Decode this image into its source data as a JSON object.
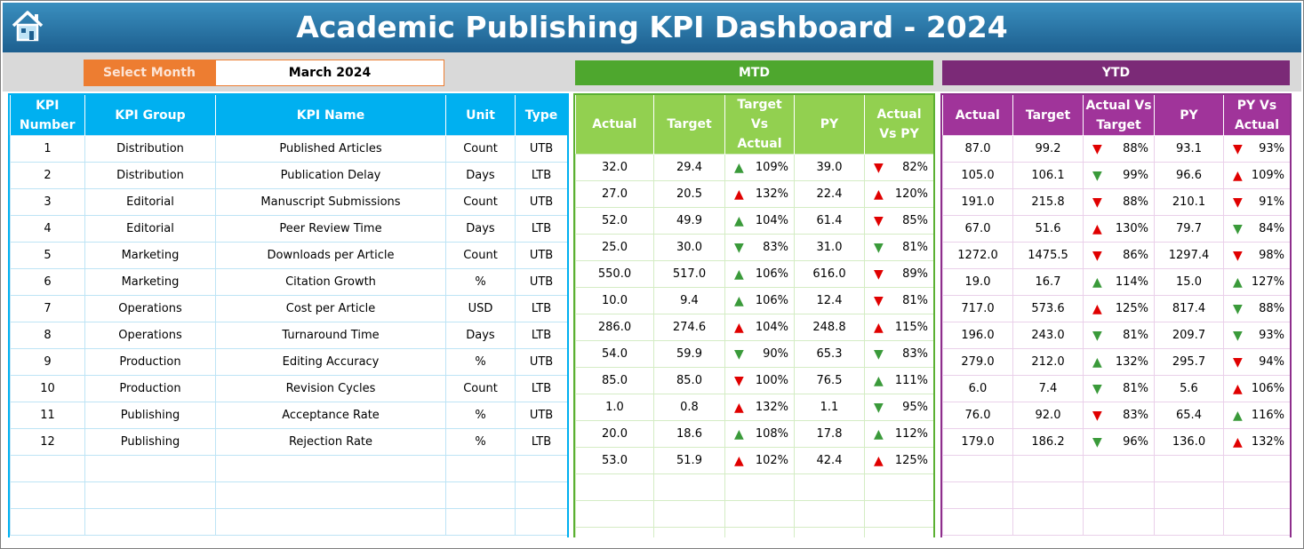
{
  "header": {
    "title": "Academic Publishing KPI Dashboard - 2024"
  },
  "month_selector": {
    "label": "Select Month",
    "value": "March 2024"
  },
  "sections": {
    "mtd": "MTD",
    "ytd": "YTD"
  },
  "kpi_table": {
    "columns": [
      "KPI Number",
      "KPI Group",
      "KPI Name",
      "Unit",
      "Type"
    ],
    "rows": [
      [
        1,
        "Distribution",
        "Published Articles",
        "Count",
        "UTB"
      ],
      [
        2,
        "Distribution",
        "Publication Delay",
        "Days",
        "LTB"
      ],
      [
        3,
        "Editorial",
        "Manuscript Submissions",
        "Count",
        "UTB"
      ],
      [
        4,
        "Editorial",
        "Peer Review Time",
        "Days",
        "LTB"
      ],
      [
        5,
        "Marketing",
        "Downloads per Article",
        "Count",
        "UTB"
      ],
      [
        6,
        "Marketing",
        "Citation Growth",
        "%",
        "UTB"
      ],
      [
        7,
        "Operations",
        "Cost per Article",
        "USD",
        "LTB"
      ],
      [
        8,
        "Operations",
        "Turnaround Time",
        "Days",
        "LTB"
      ],
      [
        9,
        "Production",
        "Editing Accuracy",
        "%",
        "UTB"
      ],
      [
        10,
        "Production",
        "Revision Cycles",
        "Count",
        "LTB"
      ],
      [
        11,
        "Publishing",
        "Acceptance Rate",
        "%",
        "UTB"
      ],
      [
        12,
        "Publishing",
        "Rejection Rate",
        "%",
        "LTB"
      ]
    ]
  },
  "mtd_table": {
    "columns": [
      "Actual",
      "Target",
      "Target Vs Actual",
      "PY",
      "Actual Vs PY"
    ],
    "rows": [
      [
        "32.0",
        "29.4",
        {
          "icon": "up-green",
          "text": "109%"
        },
        "39.0",
        {
          "icon": "down-red",
          "text": "82%"
        }
      ],
      [
        "27.0",
        "20.5",
        {
          "icon": "up-red",
          "text": "132%"
        },
        "22.4",
        {
          "icon": "up-red",
          "text": "120%"
        }
      ],
      [
        "52.0",
        "49.9",
        {
          "icon": "up-green",
          "text": "104%"
        },
        "61.4",
        {
          "icon": "down-red",
          "text": "85%"
        }
      ],
      [
        "25.0",
        "30.0",
        {
          "icon": "down-green",
          "text": "83%"
        },
        "31.0",
        {
          "icon": "down-green",
          "text": "81%"
        }
      ],
      [
        "550.0",
        "517.0",
        {
          "icon": "up-green",
          "text": "106%"
        },
        "616.0",
        {
          "icon": "down-red",
          "text": "89%"
        }
      ],
      [
        "10.0",
        "9.4",
        {
          "icon": "up-green",
          "text": "106%"
        },
        "12.4",
        {
          "icon": "down-red",
          "text": "81%"
        }
      ],
      [
        "286.0",
        "274.6",
        {
          "icon": "up-red",
          "text": "104%"
        },
        "248.8",
        {
          "icon": "up-red",
          "text": "115%"
        }
      ],
      [
        "54.0",
        "59.9",
        {
          "icon": "down-green",
          "text": "90%"
        },
        "65.3",
        {
          "icon": "down-green",
          "text": "83%"
        }
      ],
      [
        "85.0",
        "85.0",
        {
          "icon": "down-red",
          "text": "100%"
        },
        "76.5",
        {
          "icon": "up-green",
          "text": "111%"
        }
      ],
      [
        "1.0",
        "0.8",
        {
          "icon": "up-red",
          "text": "132%"
        },
        "1.1",
        {
          "icon": "down-green",
          "text": "95%"
        }
      ],
      [
        "20.0",
        "18.6",
        {
          "icon": "up-green",
          "text": "108%"
        },
        "17.8",
        {
          "icon": "up-green",
          "text": "112%"
        }
      ],
      [
        "53.0",
        "51.9",
        {
          "icon": "up-red",
          "text": "102%"
        },
        "42.4",
        {
          "icon": "up-red",
          "text": "125%"
        }
      ]
    ]
  },
  "ytd_table": {
    "columns": [
      "Actual",
      "Target",
      "Actual Vs Target",
      "PY",
      "PY Vs Actual"
    ],
    "rows": [
      [
        "87.0",
        "99.2",
        {
          "icon": "down-red",
          "text": "88%"
        },
        "93.1",
        {
          "icon": "down-red",
          "text": "93%"
        }
      ],
      [
        "105.0",
        "106.1",
        {
          "icon": "down-green",
          "text": "99%"
        },
        "96.6",
        {
          "icon": "up-red",
          "text": "109%"
        }
      ],
      [
        "191.0",
        "215.8",
        {
          "icon": "down-red",
          "text": "88%"
        },
        "210.1",
        {
          "icon": "down-red",
          "text": "91%"
        }
      ],
      [
        "67.0",
        "51.6",
        {
          "icon": "up-red",
          "text": "130%"
        },
        "79.7",
        {
          "icon": "down-green",
          "text": "84%"
        }
      ],
      [
        "1272.0",
        "1475.5",
        {
          "icon": "down-red",
          "text": "86%"
        },
        "1297.4",
        {
          "icon": "down-red",
          "text": "98%"
        }
      ],
      [
        "19.0",
        "16.7",
        {
          "icon": "up-green",
          "text": "114%"
        },
        "15.0",
        {
          "icon": "up-green",
          "text": "127%"
        }
      ],
      [
        "717.0",
        "573.6",
        {
          "icon": "up-red",
          "text": "125%"
        },
        "817.4",
        {
          "icon": "down-green",
          "text": "88%"
        }
      ],
      [
        "196.0",
        "243.0",
        {
          "icon": "down-green",
          "text": "81%"
        },
        "209.7",
        {
          "icon": "down-green",
          "text": "93%"
        }
      ],
      [
        "279.0",
        "212.0",
        {
          "icon": "up-green",
          "text": "132%"
        },
        "295.7",
        {
          "icon": "down-red",
          "text": "94%"
        }
      ],
      [
        "6.0",
        "7.4",
        {
          "icon": "down-green",
          "text": "81%"
        },
        "5.6",
        {
          "icon": "up-red",
          "text": "106%"
        }
      ],
      [
        "76.0",
        "92.0",
        {
          "icon": "down-red",
          "text": "83%"
        },
        "65.4",
        {
          "icon": "up-green",
          "text": "116%"
        }
      ],
      [
        "179.0",
        "186.2",
        {
          "icon": "down-green",
          "text": "96%"
        },
        "136.0",
        {
          "icon": "up-red",
          "text": "132%"
        }
      ]
    ]
  }
}
